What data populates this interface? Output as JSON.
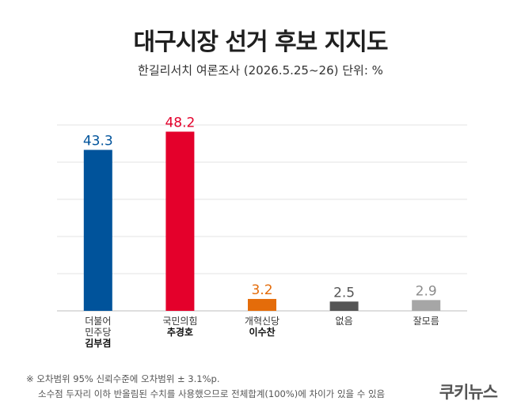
{
  "header": {
    "title": "대구시장 선거 후보 지지도",
    "subtitle": "한길리서치 여론조사 (2026.5.25~26) 단위: %"
  },
  "chart_data": {
    "type": "bar",
    "title": "대구시장 선거 후보 지지도",
    "subtitle": "한길리서치 여론조사 (2026.5.25~26) 단위: %",
    "xlabel": "",
    "ylabel": "",
    "ylim": [
      0,
      50
    ],
    "grid": true,
    "categories": [
      {
        "party": [
          "더불어",
          "민주당"
        ],
        "candidate": "김부겸"
      },
      {
        "party": [
          "국민의힘"
        ],
        "candidate": "추경호"
      },
      {
        "party": [
          "개혁신당"
        ],
        "candidate": "이수찬"
      },
      {
        "party": [
          "없음"
        ],
        "candidate": ""
      },
      {
        "party": [
          "잘모름"
        ],
        "candidate": ""
      }
    ],
    "values": [
      43.3,
      48.2,
      3.2,
      2.5,
      2.9
    ],
    "value_labels": [
      "43.3",
      "48.2",
      "3.2",
      "2.5",
      "2.9"
    ],
    "colors": [
      "#00539b",
      "#e4002b",
      "#e46c0a",
      "#555555",
      "#a6a6a6"
    ]
  },
  "footnote": {
    "line1": "※ 오차범위 95% 신뢰수준에 오차범위 ± 3.1%p.",
    "line2": "소수점 두자리 이하 반올림된 수치를 사용했으므로 전체합계(100%)에 차이가 있을 수 있음"
  },
  "brand": "쿠키뉴스"
}
